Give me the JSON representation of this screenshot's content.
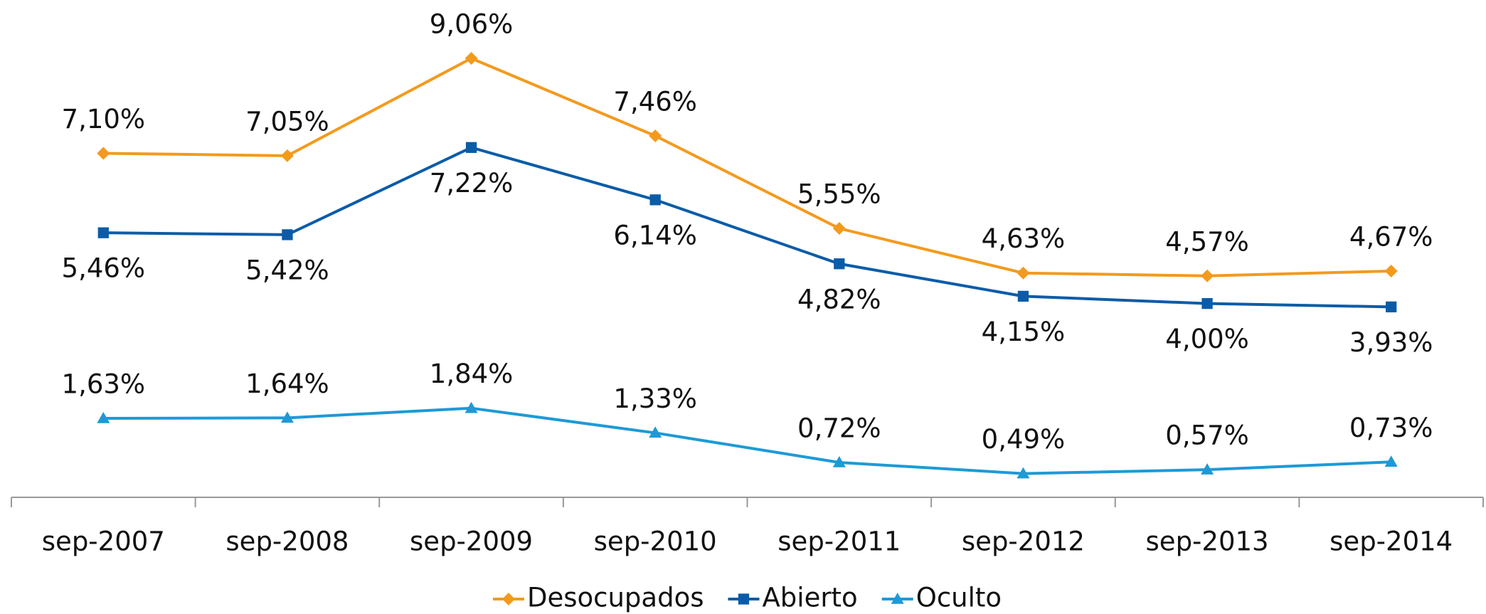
{
  "chart_data": {
    "type": "line",
    "categories": [
      "sep-2007",
      "sep-2008",
      "sep-2009",
      "sep-2010",
      "sep-2011",
      "sep-2012",
      "sep-2013",
      "sep-2014"
    ],
    "ylim": [
      0,
      10
    ],
    "series": [
      {
        "name": "Desocupados",
        "color": "#f39a1e",
        "marker": "diamond",
        "values": [
          7.1,
          7.05,
          9.06,
          7.46,
          5.55,
          4.63,
          4.57,
          4.67
        ],
        "value_labels": [
          "7,10%",
          "7,05%",
          "9,06%",
          "7,46%",
          "5,55%",
          "4,63%",
          "4,57%",
          "4,67%"
        ]
      },
      {
        "name": "Abierto",
        "color": "#0b5ca8",
        "marker": "square",
        "values": [
          5.46,
          5.42,
          7.22,
          6.14,
          4.82,
          4.15,
          4.0,
          3.93
        ],
        "value_labels": [
          "5,46%",
          "5,42%",
          "7,22%",
          "6,14%",
          "4,82%",
          "4,15%",
          "4,00%",
          "3,93%"
        ]
      },
      {
        "name": "Oculto",
        "color": "#1d9ad6",
        "marker": "triangle",
        "values": [
          1.63,
          1.64,
          1.84,
          1.33,
          0.72,
          0.49,
          0.57,
          0.73
        ],
        "value_labels": [
          "1,63%",
          "1,64%",
          "1,84%",
          "1,33%",
          "0,72%",
          "0,49%",
          "0,57%",
          "0,73%"
        ]
      }
    ]
  }
}
